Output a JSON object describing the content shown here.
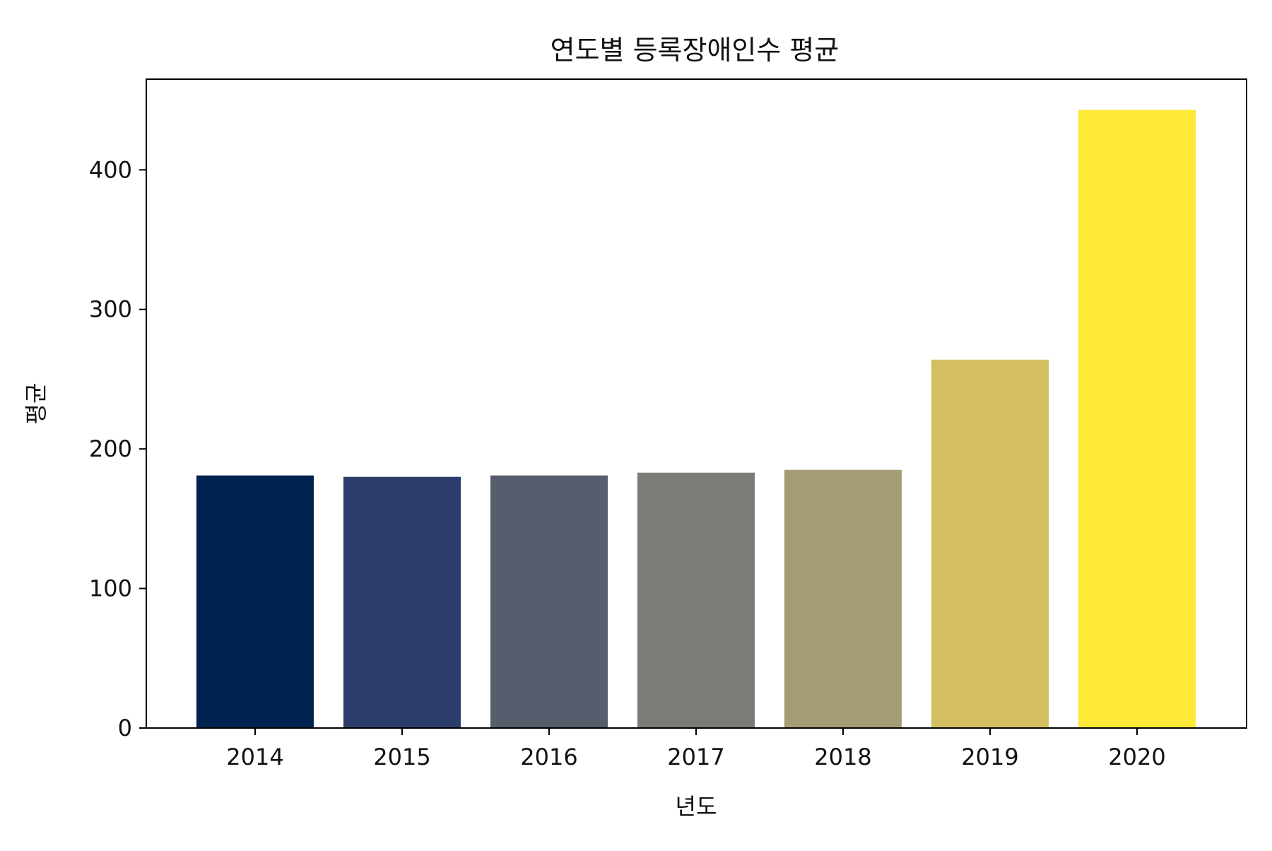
{
  "chart_data": {
    "type": "bar",
    "title": "연도별 등록장애인수 평균",
    "xlabel": "년도",
    "ylabel": "평균",
    "categories": [
      "2014",
      "2015",
      "2016",
      "2017",
      "2018",
      "2019",
      "2020"
    ],
    "values": [
      181,
      180,
      181,
      183,
      185,
      264,
      443
    ],
    "colors": [
      "#00224e",
      "#2c3d6b",
      "#575d6d",
      "#7c7b78",
      "#a59c74",
      "#d3bf61",
      "#fee838"
    ],
    "ylim": [
      0,
      465
    ],
    "yticks": [
      "0",
      "100",
      "200",
      "300",
      "400"
    ],
    "grid": false,
    "legend": "none"
  }
}
